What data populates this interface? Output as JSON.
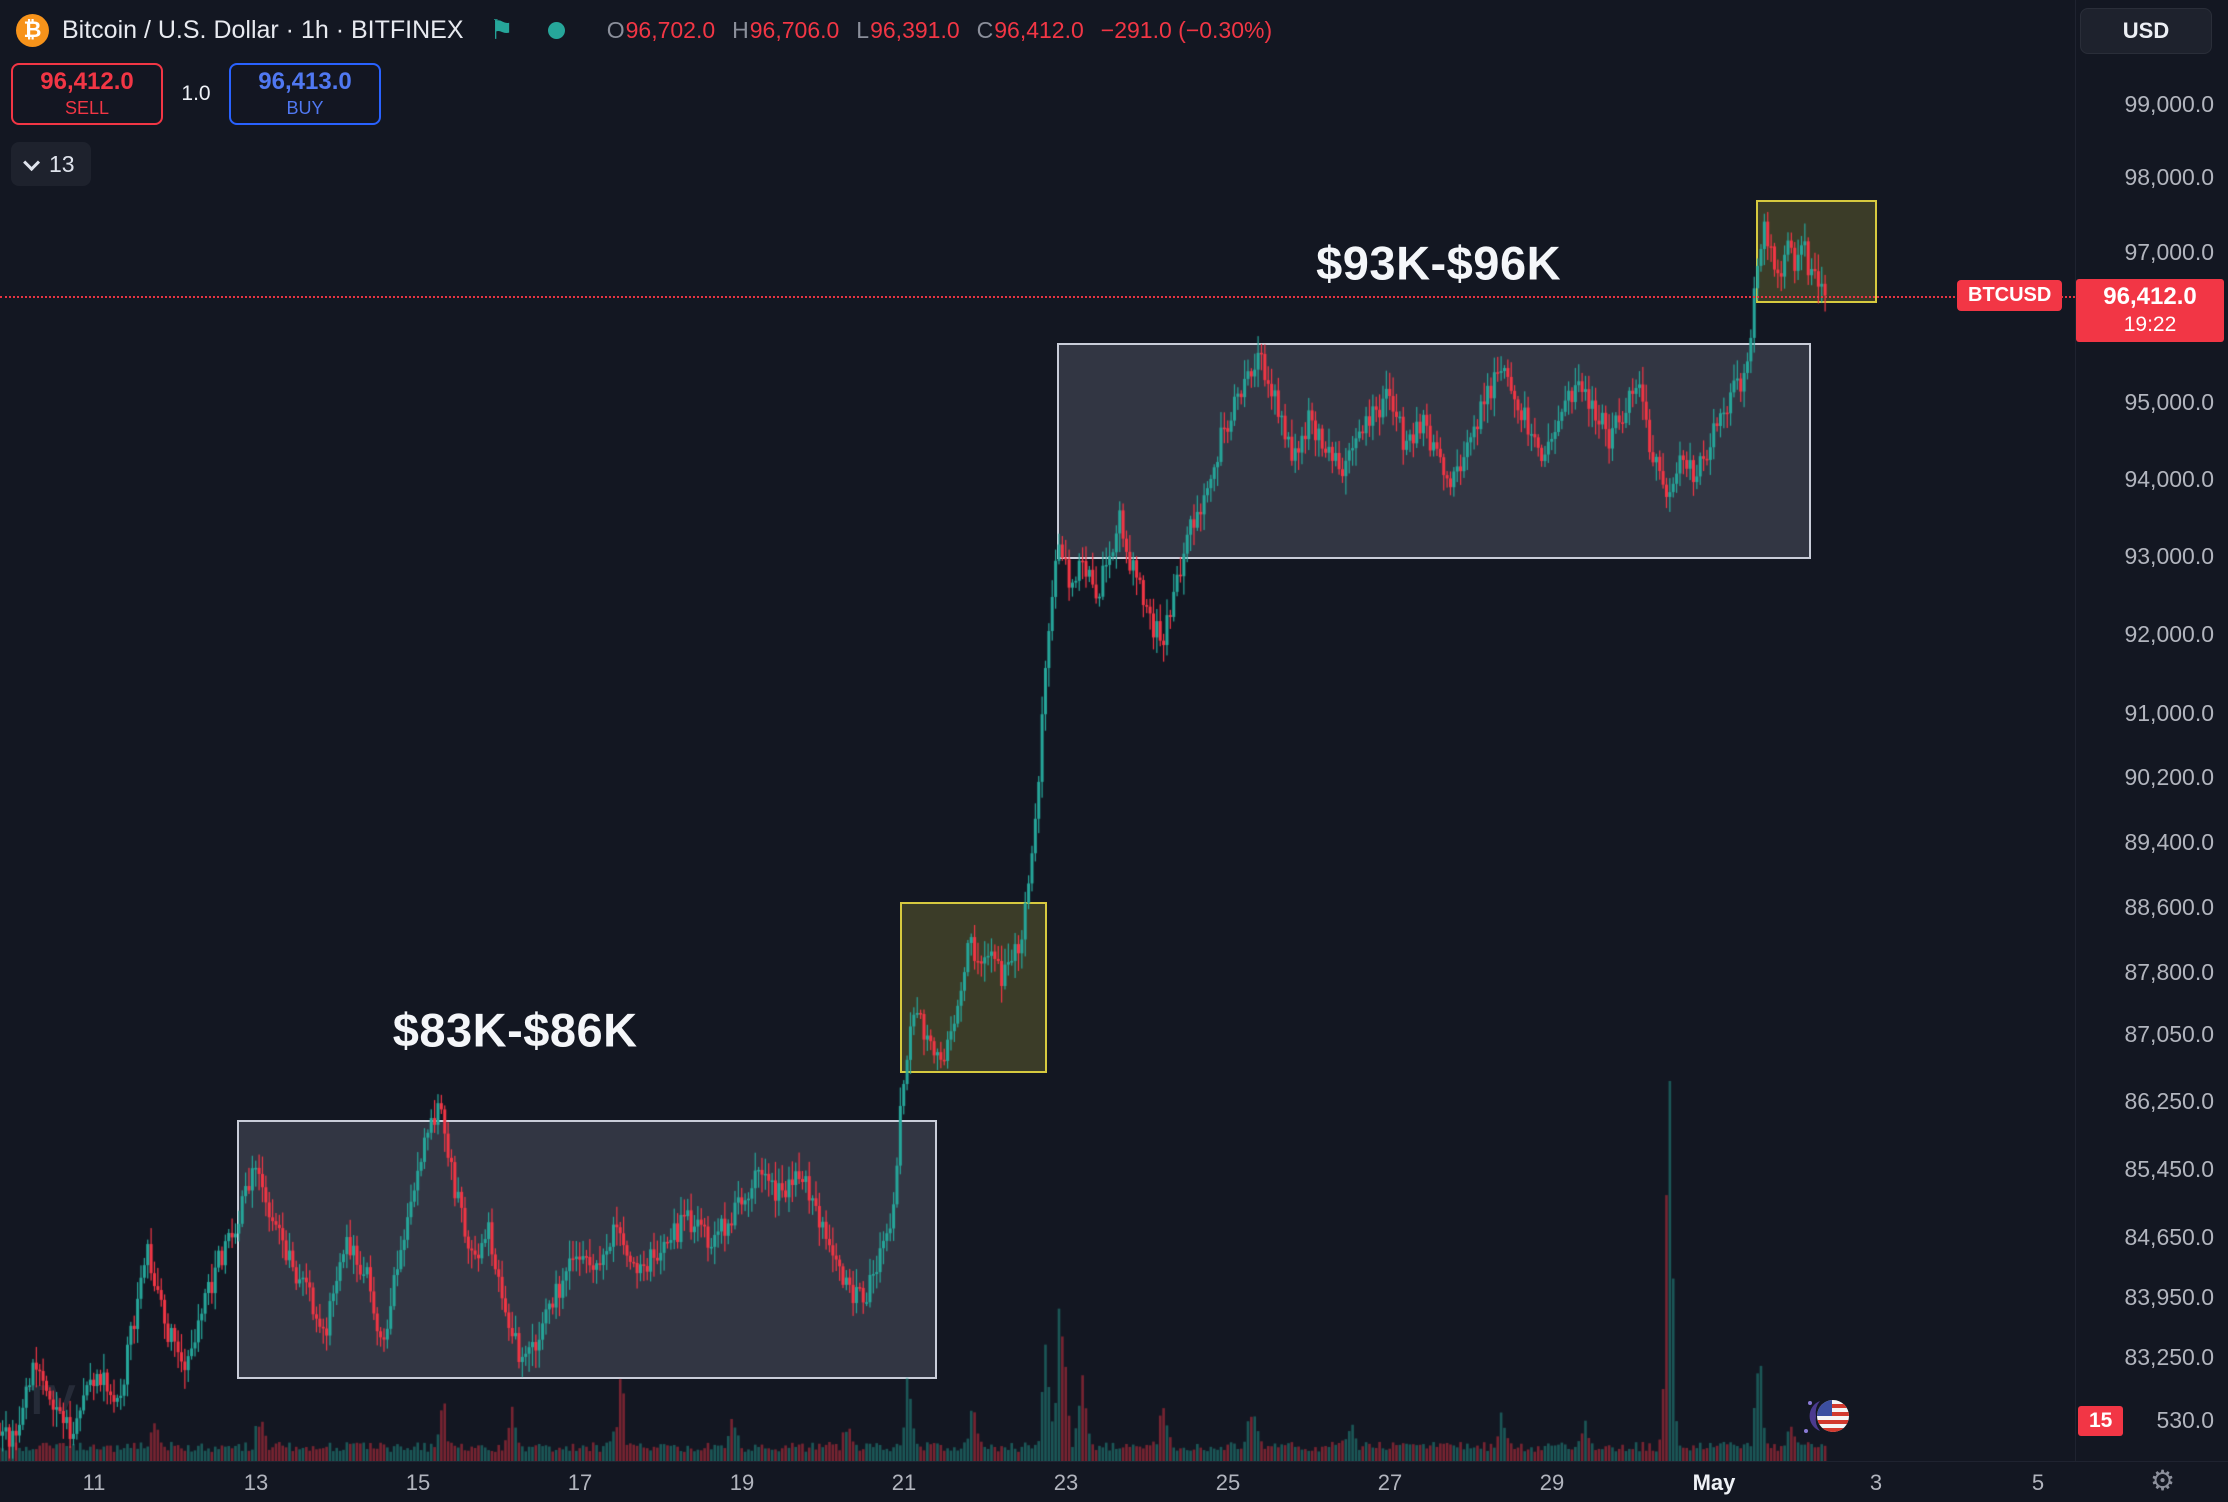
{
  "header": {
    "symbol_title": "Bitcoin / U.S. Dollar · 1h · BITFINEX",
    "ohlc": {
      "o_label": "O",
      "o_value": "96,702.0",
      "h_label": "H",
      "h_value": "96,706.0",
      "l_label": "L",
      "l_value": "96,391.0",
      "c_label": "C",
      "c_value": "96,412.0",
      "change_value": "−291.0 (−0.30%)"
    },
    "currency_button": "USD"
  },
  "order_panel": {
    "sell_price": "96,412.0",
    "sell_label": "SELL",
    "quantity": "1.0",
    "buy_price": "96,413.0",
    "buy_label": "BUY",
    "count_dropdown": "13"
  },
  "price_scale": {
    "ticks": [
      {
        "label": "99,000.0",
        "price": 99000
      },
      {
        "label": "98,000.0",
        "price": 98000
      },
      {
        "label": "97,000.0",
        "price": 97000
      },
      {
        "label": "95,000.0",
        "price": 95000
      },
      {
        "label": "94,000.0",
        "price": 94000
      },
      {
        "label": "93,000.0",
        "price": 93000
      },
      {
        "label": "92,000.0",
        "price": 92000
      },
      {
        "label": "91,000.0",
        "price": 91000
      },
      {
        "label": "90,200.0",
        "price": 90200
      },
      {
        "label": "89,400.0",
        "price": 89400
      },
      {
        "label": "88,600.0",
        "price": 88600
      },
      {
        "label": "87,800.0",
        "price": 87800
      },
      {
        "label": "87,050.0",
        "price": 87050
      },
      {
        "label": "86,250.0",
        "price": 86250
      },
      {
        "label": "85,450.0",
        "price": 85450
      },
      {
        "label": "84,650.0",
        "price": 84650
      },
      {
        "label": "83,950.0",
        "price": 83950
      },
      {
        "label": "83,250.0",
        "price": 83250
      },
      {
        "label": "530.0",
        "price": 82530
      }
    ],
    "last_price_label": "96,412.0",
    "countdown": "19:22",
    "symbol_tag": "BTCUSD",
    "red_badge": "15"
  },
  "time_axis": {
    "ticks": [
      {
        "label": "11",
        "day": 11
      },
      {
        "label": "13",
        "day": 13
      },
      {
        "label": "15",
        "day": 15
      },
      {
        "label": "17",
        "day": 17
      },
      {
        "label": "19",
        "day": 19
      },
      {
        "label": "21",
        "day": 21
      },
      {
        "label": "23",
        "day": 23
      },
      {
        "label": "25",
        "day": 25
      },
      {
        "label": "27",
        "day": 27
      },
      {
        "label": "29",
        "day": 29
      },
      {
        "label": "May",
        "day": 31,
        "major": true
      },
      {
        "label": "3",
        "day": 33
      },
      {
        "label": "5",
        "day": 35
      }
    ]
  },
  "chart_data": {
    "type": "candlestick",
    "title": "Bitcoin / U.S. Dollar · 1h · BITFINEX",
    "symbol": "BTCUSD",
    "exchange": "BITFINEX",
    "interval": "1h",
    "quote_currency": "USD",
    "scale_type": "log",
    "last_price": 96412.0,
    "ohlc_current": {
      "open": 96702.0,
      "high": 96706.0,
      "low": 96391.0,
      "close": 96412.0,
      "change": -291.0,
      "change_pct": -0.3
    },
    "visible_price_range": [
      82200,
      99400
    ],
    "visible_time_range": [
      "Apr 10",
      "May 5"
    ],
    "price_path_anchors": [
      [
        9.83,
        82500
      ],
      [
        10.05,
        82250
      ],
      [
        10.3,
        83300
      ],
      [
        10.5,
        82800
      ],
      [
        10.75,
        82350
      ],
      [
        11.05,
        83050
      ],
      [
        11.35,
        82750
      ],
      [
        11.7,
        84550
      ],
      [
        11.9,
        83700
      ],
      [
        12.15,
        83050
      ],
      [
        12.5,
        84150
      ],
      [
        12.8,
        84850
      ],
      [
        13.05,
        85450
      ],
      [
        13.3,
        84750
      ],
      [
        13.6,
        84100
      ],
      [
        13.9,
        83550
      ],
      [
        14.15,
        84650
      ],
      [
        14.4,
        84200
      ],
      [
        14.6,
        83450
      ],
      [
        14.9,
        84750
      ],
      [
        15.1,
        85650
      ],
      [
        15.3,
        86200
      ],
      [
        15.45,
        85400
      ],
      [
        15.7,
        84350
      ],
      [
        15.9,
        84750
      ],
      [
        16.15,
        83500
      ],
      [
        16.4,
        83200
      ],
      [
        16.7,
        83850
      ],
      [
        17.0,
        84550
      ],
      [
        17.25,
        84250
      ],
      [
        17.5,
        84800
      ],
      [
        17.75,
        84200
      ],
      [
        18.05,
        84500
      ],
      [
        18.35,
        84850
      ],
      [
        18.65,
        84550
      ],
      [
        18.95,
        84950
      ],
      [
        19.25,
        85350
      ],
      [
        19.5,
        85150
      ],
      [
        19.8,
        85350
      ],
      [
        20.05,
        84750
      ],
      [
        20.3,
        84100
      ],
      [
        20.55,
        83900
      ],
      [
        20.75,
        84450
      ],
      [
        20.9,
        84950
      ],
      [
        21.05,
        86750
      ],
      [
        21.2,
        87350
      ],
      [
        21.35,
        87000
      ],
      [
        21.5,
        86650
      ],
      [
        21.7,
        87250
      ],
      [
        21.85,
        88250
      ],
      [
        21.95,
        87900
      ],
      [
        22.1,
        88050
      ],
      [
        22.25,
        87700
      ],
      [
        22.4,
        87950
      ],
      [
        22.5,
        88350
      ],
      [
        22.65,
        89350
      ],
      [
        22.75,
        90900
      ],
      [
        22.85,
        92300
      ],
      [
        22.95,
        93250
      ],
      [
        23.1,
        92650
      ],
      [
        23.25,
        93050
      ],
      [
        23.4,
        92350
      ],
      [
        23.55,
        92950
      ],
      [
        23.7,
        93450
      ],
      [
        23.85,
        92850
      ],
      [
        24.0,
        92450
      ],
      [
        24.15,
        92050
      ],
      [
        24.25,
        91950
      ],
      [
        24.4,
        92550
      ],
      [
        24.55,
        93250
      ],
      [
        24.7,
        93650
      ],
      [
        24.9,
        94350
      ],
      [
        25.1,
        94950
      ],
      [
        25.3,
        95400
      ],
      [
        25.45,
        95600
      ],
      [
        25.65,
        94900
      ],
      [
        25.85,
        94300
      ],
      [
        26.05,
        94750
      ],
      [
        26.25,
        94450
      ],
      [
        26.45,
        94000
      ],
      [
        26.65,
        94500
      ],
      [
        26.85,
        94900
      ],
      [
        27.05,
        95050
      ],
      [
        27.25,
        94350
      ],
      [
        27.45,
        94750
      ],
      [
        27.65,
        94200
      ],
      [
        27.8,
        93850
      ],
      [
        28.0,
        94400
      ],
      [
        28.2,
        94950
      ],
      [
        28.4,
        95500
      ],
      [
        28.55,
        95100
      ],
      [
        28.75,
        94700
      ],
      [
        28.95,
        94250
      ],
      [
        29.15,
        94700
      ],
      [
        29.35,
        95300
      ],
      [
        29.55,
        94900
      ],
      [
        29.75,
        94550
      ],
      [
        29.95,
        94900
      ],
      [
        30.1,
        95200
      ],
      [
        30.3,
        94250
      ],
      [
        30.45,
        93700
      ],
      [
        30.6,
        94300
      ],
      [
        30.8,
        94100
      ],
      [
        31.0,
        94500
      ],
      [
        31.15,
        94950
      ],
      [
        31.3,
        95150
      ],
      [
        31.45,
        95450
      ],
      [
        31.55,
        96550
      ],
      [
        31.65,
        97300
      ],
      [
        31.75,
        97000
      ],
      [
        31.85,
        96700
      ],
      [
        31.95,
        97200
      ],
      [
        32.05,
        96850
      ],
      [
        32.15,
        97050
      ],
      [
        32.25,
        96650
      ],
      [
        32.33,
        96500
      ],
      [
        32.38,
        96412
      ]
    ],
    "volume_spike_anchors": [
      [
        11.75,
        3
      ],
      [
        13.05,
        2
      ],
      [
        15.3,
        3
      ],
      [
        16.15,
        2
      ],
      [
        17.5,
        4.5
      ],
      [
        18.9,
        1.5
      ],
      [
        20.3,
        1.5
      ],
      [
        21.05,
        4
      ],
      [
        21.85,
        3
      ],
      [
        22.75,
        6
      ],
      [
        22.95,
        12
      ],
      [
        23.2,
        4
      ],
      [
        24.2,
        3
      ],
      [
        25.3,
        2.5
      ],
      [
        26.5,
        1.5
      ],
      [
        28.4,
        2
      ],
      [
        29.4,
        1.5
      ],
      [
        30.45,
        23
      ],
      [
        31.55,
        6.5
      ],
      [
        31.95,
        2.5
      ]
    ],
    "drawings": {
      "rects": [
        {
          "name": "range-box-83k-86k",
          "style": "gray",
          "day_start": 12.77,
          "day_end": 21.41,
          "price_low": 83000,
          "price_high": 86030
        },
        {
          "name": "range-box-93k-96k",
          "style": "gray",
          "day_start": 22.89,
          "day_end": 32.2,
          "price_low": 92960,
          "price_high": 95780
        },
        {
          "name": "breakout-box-apr21",
          "style": "yellow",
          "day_start": 20.95,
          "day_end": 22.77,
          "price_low": 86585,
          "price_high": 88660
        },
        {
          "name": "breakout-box-may1",
          "style": "yellow",
          "day_start": 31.52,
          "day_end": 33.01,
          "price_low": 96313,
          "price_high": 97695
        }
      ],
      "labels": [
        {
          "text": "$83K-$86K",
          "day": 16.2,
          "price": 87100
        },
        {
          "text": "$93K-$96K",
          "day": 27.6,
          "price": 96850
        }
      ]
    }
  },
  "colors": {
    "background": "#131722",
    "accent_red": "#f23645",
    "accent_blue": "#2962ff",
    "bitcoin_orange": "#f7931a",
    "teal": "#26a69a",
    "candle_up": "#26a69a",
    "candle_down": "#f23645",
    "volume_up": "rgba(38,166,154,0.45)",
    "volume_down": "rgba(242,54,69,0.45)",
    "box_gray_border": "#c9cdd9",
    "box_yellow_border": "#d6c93f"
  },
  "misc": {
    "watermark": "TV",
    "bitcoin_glyph": "₿",
    "flag_glyph": "⚑",
    "gear_glyph": "⚙"
  }
}
